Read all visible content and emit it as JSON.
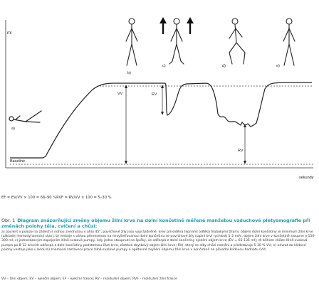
{
  "figure": {
    "y_axis_label": "ml",
    "x_axis_label": "sekundy",
    "baseline_label": "Baseline",
    "stage_labels": {
      "a": "a)",
      "b": "b)",
      "c": "c)",
      "d": "d)",
      "e": "e)"
    },
    "measure_labels": {
      "vv": "VV",
      "ev": "EV",
      "rv": "RV"
    }
  },
  "formula": "EF = EV/VV × 100 = 66–90 %RVF = RV/VV × 100 = 5–30 %",
  "caption": {
    "label": "Obr. 1",
    "title": "Diagram znázorňující změny objemu žilní krve na dolní končetině měřené manžetou vzduchové pletysmografie při změnách polohy těla, cvičení a chůzi:",
    "body": "a) pacient v poloze na zádech s nohou zvednutou v úhlu 45°, povrchové žíly jsou vyprázdněné, krev přiváděná tepnami odtéká hlubokými žílami, objem dolní končetiny je minimum žilní krve (základní hemodynamický stav); b) vestoje s váhou přenesenou na nevyšetřovanou dolní končetinu se povrchové žíly naplní krví rychlostí 1-2 ml/s, objem žilní krve v končetině stoupne o 150-300 ml; c) jednorázovým zapojením žilně-svalové pumpy, kdy jedno stoupnutí na špičky, se odčerpá z dolní končetiny ejekční objem krve (EV = 65-135 ml); d) během chůze žilně-svalová pumpa po 8-12 krocích odčerpá z dolní končetiny podstatnou část krve, zůstává zbytkový objem žilní krve (RV), který se díky chůzi nemění a představuje 5-30 % VV; e) návrat do klidové polohy vestoje jako u bodu b) znamená zastavení práce žilně-svalové pumpy a opětovné zvýšení objemu žilní krve v končetině na původní klidovou hodnotu (VV)",
    "abbreviations": "VV – žilní objem; EV – ejekční objem; EF – ejekční frakce; RV – reziduální objem; RVF – reziduální žilní frakce"
  }
}
